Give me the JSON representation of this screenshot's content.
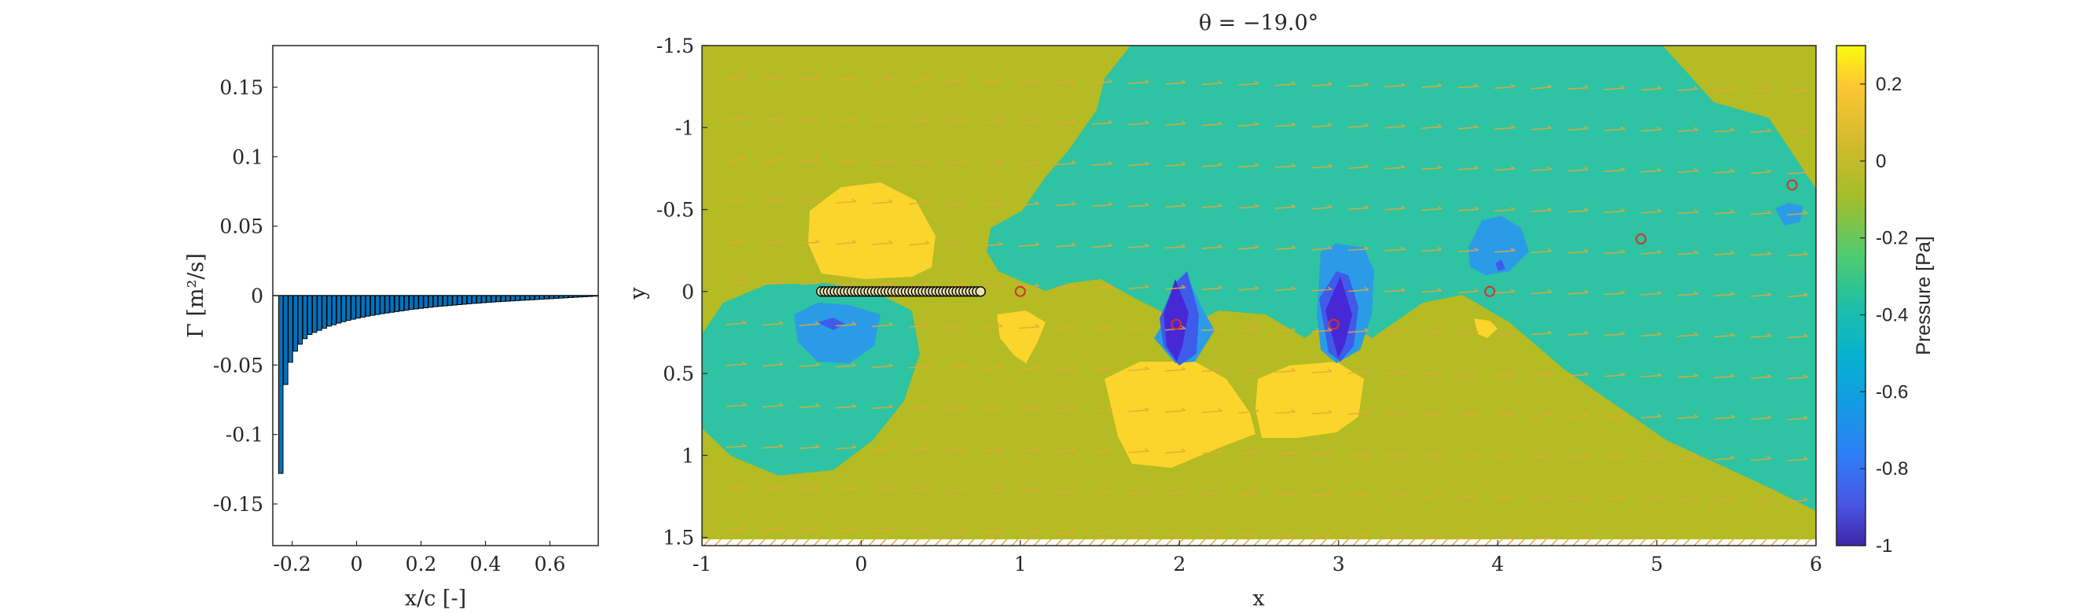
{
  "chart_data": [
    {
      "type": "bar",
      "xlabel": "x/c [-]",
      "ylabel": "Γ [m²/s]",
      "xlim": [
        -0.26,
        0.75
      ],
      "ylim": [
        -0.18,
        0.18
      ],
      "xticks": [
        "-0.2",
        "0",
        "0.2",
        "0.4",
        "0.6"
      ],
      "yticks": [
        "-0.15",
        "-0.1",
        "-0.05",
        "0",
        "0.05",
        "0.1",
        "0.15"
      ],
      "bar_color": "#0072BD",
      "x": [
        -0.235,
        -0.22,
        -0.205,
        -0.19,
        -0.175,
        -0.16,
        -0.145,
        -0.13,
        -0.115,
        -0.1,
        -0.085,
        -0.07,
        -0.055,
        -0.04,
        -0.025,
        -0.01,
        0.005,
        0.02,
        0.035,
        0.05,
        0.065,
        0.08,
        0.095,
        0.11,
        0.125,
        0.14,
        0.155,
        0.17,
        0.185,
        0.2,
        0.215,
        0.23,
        0.245,
        0.26,
        0.275,
        0.29,
        0.305,
        0.32,
        0.335,
        0.35,
        0.365,
        0.38,
        0.395,
        0.41,
        0.425,
        0.44,
        0.455,
        0.47,
        0.485,
        0.5,
        0.515,
        0.53,
        0.545,
        0.56,
        0.575,
        0.59,
        0.605,
        0.62,
        0.635,
        0.65,
        0.665,
        0.68,
        0.695,
        0.71,
        0.725,
        0.74
      ],
      "values": [
        -0.128,
        -0.064,
        -0.048,
        -0.04,
        -0.035,
        -0.031,
        -0.028,
        -0.0265,
        -0.025,
        -0.0235,
        -0.022,
        -0.021,
        -0.0198,
        -0.0188,
        -0.0178,
        -0.017,
        -0.0162,
        -0.0155,
        -0.0148,
        -0.0142,
        -0.0136,
        -0.013,
        -0.0125,
        -0.012,
        -0.0115,
        -0.011,
        -0.0105,
        -0.01,
        -0.0096,
        -0.0092,
        -0.0088,
        -0.0084,
        -0.008,
        -0.0077,
        -0.0074,
        -0.0071,
        -0.0068,
        -0.0065,
        -0.0062,
        -0.0059,
        -0.0056,
        -0.0054,
        -0.0051,
        -0.0049,
        -0.0046,
        -0.0044,
        -0.0042,
        -0.004,
        -0.0038,
        -0.0036,
        -0.0034,
        -0.0032,
        -0.003,
        -0.0028,
        -0.0026,
        -0.0024,
        -0.0022,
        -0.002,
        -0.0018,
        -0.0016,
        -0.0014,
        -0.0012,
        -0.001,
        -0.0008,
        -0.0006,
        -0.0004
      ]
    },
    {
      "type": "contour",
      "title": "θ = −19.0°",
      "xlabel": "x",
      "ylabel": "y",
      "xlim": [
        -1,
        6
      ],
      "ylim": [
        -1.5,
        1.55
      ],
      "y_reversed": true,
      "xticks": [
        "-1",
        "0",
        "1",
        "2",
        "3",
        "4",
        "5",
        "6"
      ],
      "yticks": [
        "-1.5",
        "-1",
        "-0.5",
        "0",
        "0.5",
        "1",
        "1.5"
      ],
      "colorbar": {
        "label": "Pressure [Pa]",
        "range": [
          -1,
          0.3
        ],
        "ticks": [
          "0.2",
          "0",
          "-0.2",
          "-0.4",
          "-0.6",
          "-0.8",
          "-1"
        ]
      },
      "plate": {
        "x_start": -0.25,
        "x_end": 0.75,
        "y": 0,
        "markers": 48
      },
      "vortex_markers": {
        "x": [
          1.0,
          1.98,
          2.97,
          3.95,
          4.9,
          5.85
        ],
        "y": [
          0.0,
          0.2,
          0.2,
          0.0,
          -0.32,
          -0.65
        ]
      },
      "colors": {
        "background": "#B4BB23",
        "band": "#2EC3A2",
        "high": "#FBD52B",
        "low1": "#2B9BE7",
        "low2": "#3E5BE9",
        "low3": "#4728D6",
        "vortex_marker": "#D0342A",
        "quiver": "#E5A83A"
      }
    }
  ]
}
